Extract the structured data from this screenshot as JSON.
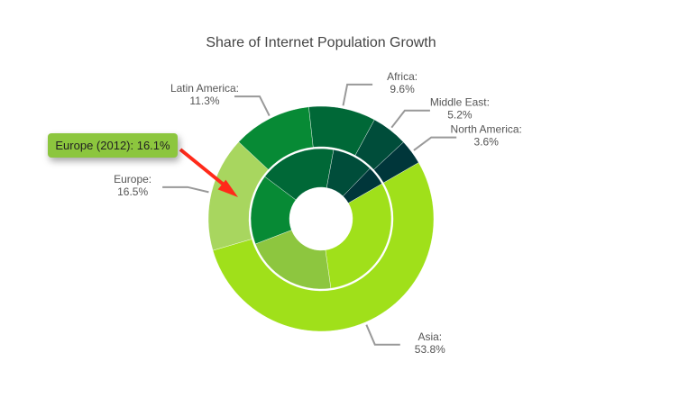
{
  "chart_data": {
    "type": "donut",
    "title": "Share of Internet Population Growth",
    "outer_ring": [
      {
        "name": "Asia",
        "value": 53.8,
        "color": "#a0e01a"
      },
      {
        "name": "Europe",
        "value": 16.5,
        "color": "#a8d65f"
      },
      {
        "name": "Latin America",
        "value": 11.3,
        "color": "#078a35"
      },
      {
        "name": "Africa",
        "value": 9.6,
        "color": "#006837"
      },
      {
        "name": "Middle East",
        "value": 5.2,
        "color": "#004d3a"
      },
      {
        "name": "North America",
        "value": 3.6,
        "color": "#00363a"
      }
    ],
    "inner_ring": [
      {
        "value": 31.1,
        "color": "#a0e01a"
      },
      {
        "value": 21.4,
        "color": "#8dc63f"
      },
      {
        "name": "Europe (2012)",
        "value": 16.1,
        "color": "#078a35"
      },
      {
        "value": 17.6,
        "color": "#006837"
      },
      {
        "value": 9.4,
        "color": "#004d3a"
      },
      {
        "value": 4.4,
        "color": "#00363a"
      }
    ],
    "labels": [
      {
        "name": "Asia:",
        "value": "53.8%"
      },
      {
        "name": "Europe:",
        "value": "16.5%"
      },
      {
        "name": "Latin America:",
        "value": "11.3%"
      },
      {
        "name": "Africa:",
        "value": "9.6%"
      },
      {
        "name": "Middle East:",
        "value": "5.2%"
      },
      {
        "name": "North America:",
        "value": "3.6%"
      }
    ],
    "tooltip": {
      "text": "Europe (2012): 16.1%",
      "color": "#8cc63e"
    },
    "annotation_arrow_color": "#ff2a1a"
  }
}
